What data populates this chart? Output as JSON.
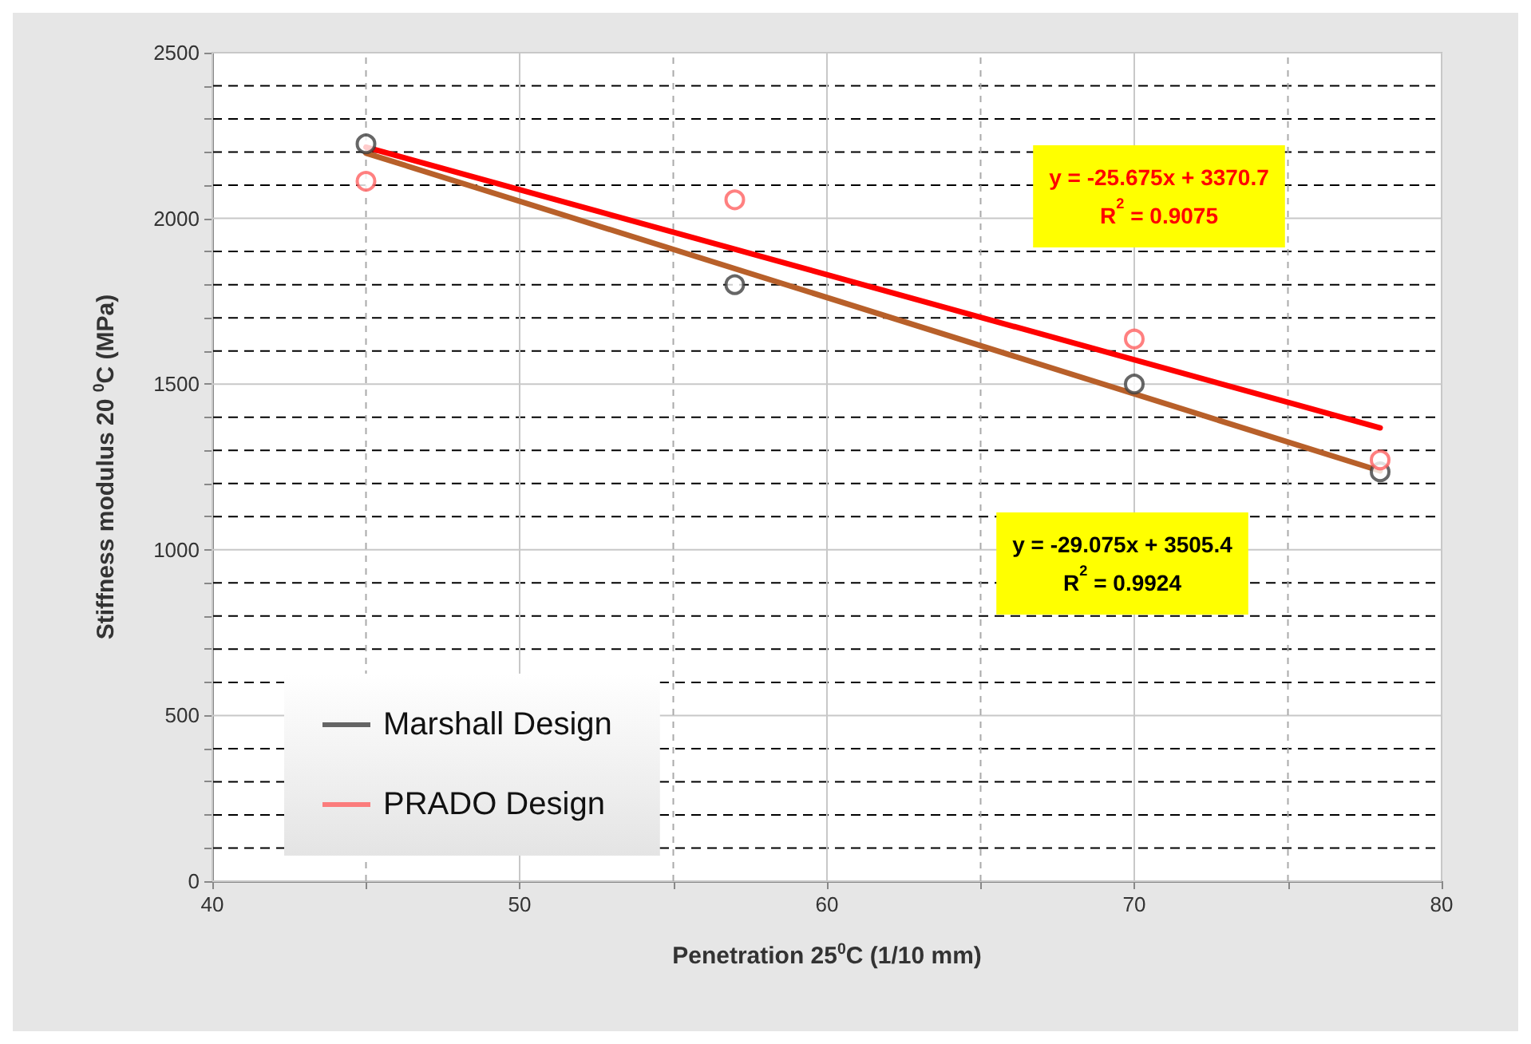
{
  "chart_data": {
    "type": "scatter",
    "xlabel": "Penetration 25$^{0}$C (1/10 mm)",
    "ylabel": "Stiffness modulus 20 $^{0}$C (MPa)",
    "xlim": [
      40,
      80
    ],
    "xticks": [
      40,
      {
        "value": 45,
        "label": null
      },
      50,
      {
        "value": 55,
        "label": null
      },
      60,
      {
        "value": 65,
        "label": null
      },
      70,
      {
        "value": 75,
        "label": null
      },
      80
    ],
    "ylim": [
      0,
      2500
    ],
    "yticks": [
      0,
      {
        "value": 100,
        "label": null
      },
      {
        "value": 200,
        "label": null
      },
      {
        "value": 300,
        "label": null
      },
      {
        "value": 400,
        "label": null
      },
      500,
      {
        "value": 600,
        "label": null
      },
      {
        "value": 700,
        "label": null
      },
      {
        "value": 800,
        "label": null
      },
      {
        "value": 900,
        "label": null
      },
      1000,
      {
        "value": 1100,
        "label": null
      },
      {
        "value": 1200,
        "label": null
      },
      {
        "value": 1300,
        "label": null
      },
      {
        "value": 1400,
        "label": null
      },
      1500,
      {
        "value": 1600,
        "label": null
      },
      {
        "value": 1700,
        "label": null
      },
      {
        "value": 1800,
        "label": null
      },
      {
        "value": 1900,
        "label": null
      },
      2000,
      {
        "value": 2100,
        "label": null
      },
      {
        "value": 2200,
        "label": null
      },
      {
        "value": 2300,
        "label": null
      },
      {
        "value": 2400,
        "label": null
      },
      2500
    ],
    "grid": true,
    "legend": "bottom left",
    "marker": "circle",
    "series": [
      {
        "name": "Marshall Design",
        "color": "#404040",
        "x": [
          45,
          57,
          70,
          78
        ],
        "values": [
          2225,
          1800,
          1500,
          1235
        ]
      },
      {
        "name": "PRADO Design",
        "color": "#ff6060",
        "x": [
          45,
          57,
          70,
          78
        ],
        "values": [
          2112,
          2056,
          1636,
          1271
        ]
      },
      {
        "type": "line",
        "marker": "none",
        "color": "#b8602a",
        "x": [
          45,
          78
        ],
        "values": [
          2197,
          1238
        ]
      },
      {
        "type": "line",
        "marker": "none",
        "color": "#ff0000",
        "x": [
          45,
          78
        ],
        "values": [
          2215,
          1368
        ]
      }
    ],
    "annotations": [
      "y = -25.675x + 3370.7\nR$^{2}$ = 0.9075",
      "y = -29.075x + 3505.4\nR$^{2}$ = 0.9924"
    ]
  }
}
